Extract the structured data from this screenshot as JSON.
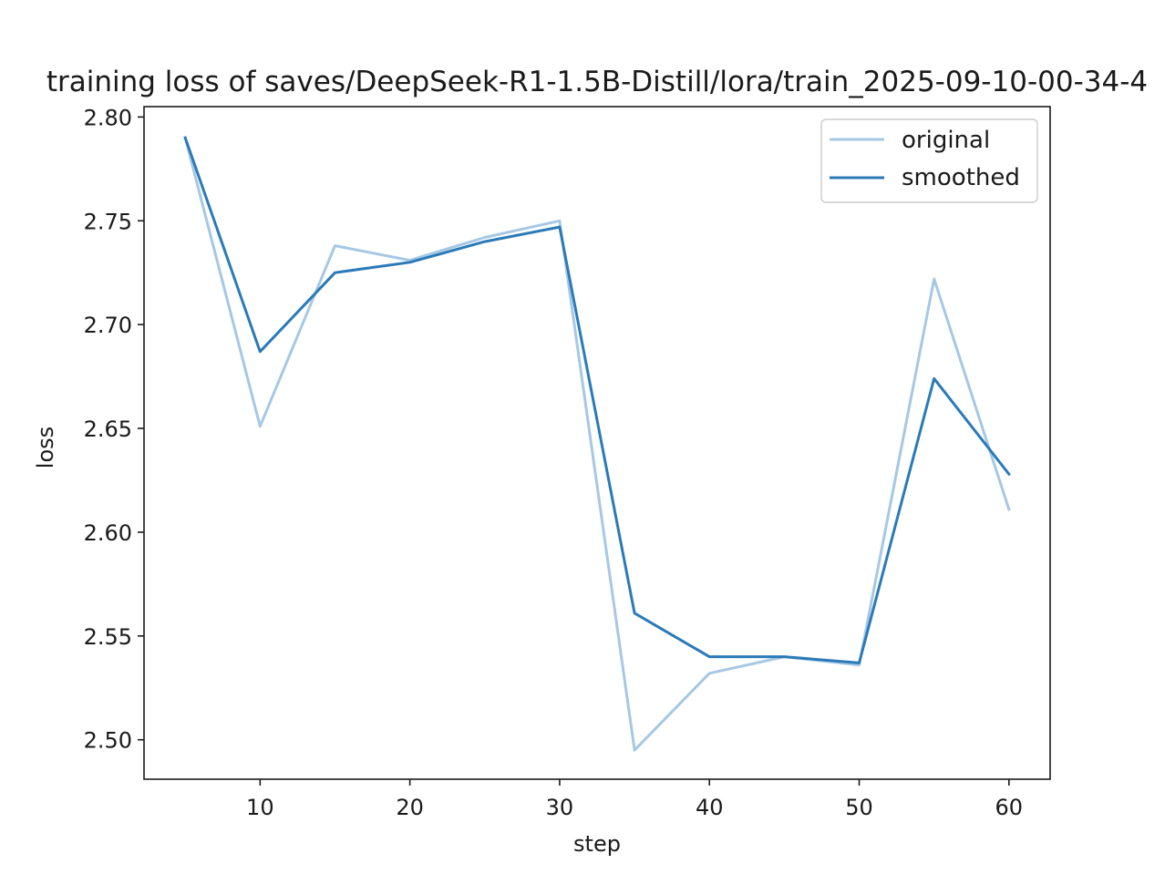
{
  "chart_data": {
    "type": "line",
    "title": "training loss of saves/DeepSeek-R1-1.5B-Distill/lora/train_2025-09-10-00-34-4",
    "xlabel": "step",
    "ylabel": "loss",
    "xlim": [
      2.25,
      62.75
    ],
    "ylim": [
      2.481,
      2.805
    ],
    "xticks": [
      10,
      20,
      30,
      40,
      50,
      60
    ],
    "xtick_labels": [
      "10",
      "20",
      "30",
      "40",
      "50",
      "60"
    ],
    "yticks": [
      2.5,
      2.55,
      2.6,
      2.65,
      2.7,
      2.75,
      2.8
    ],
    "ytick_labels": [
      "2.50",
      "2.55",
      "2.60",
      "2.65",
      "2.70",
      "2.75",
      "2.80"
    ],
    "grid": false,
    "legend_position": "top-right",
    "x": [
      5,
      10,
      15,
      20,
      25,
      30,
      35,
      40,
      45,
      50,
      55,
      60
    ],
    "series": [
      {
        "name": "original",
        "color": "#a6c8e4",
        "values": [
          2.79,
          2.651,
          2.738,
          2.731,
          2.742,
          2.75,
          2.495,
          2.532,
          2.54,
          2.536,
          2.722,
          2.611
        ]
      },
      {
        "name": "smoothed",
        "color": "#2a7ab8",
        "values": [
          2.79,
          2.687,
          2.725,
          2.73,
          2.74,
          2.747,
          2.561,
          2.54,
          2.54,
          2.537,
          2.674,
          2.628
        ]
      }
    ]
  }
}
